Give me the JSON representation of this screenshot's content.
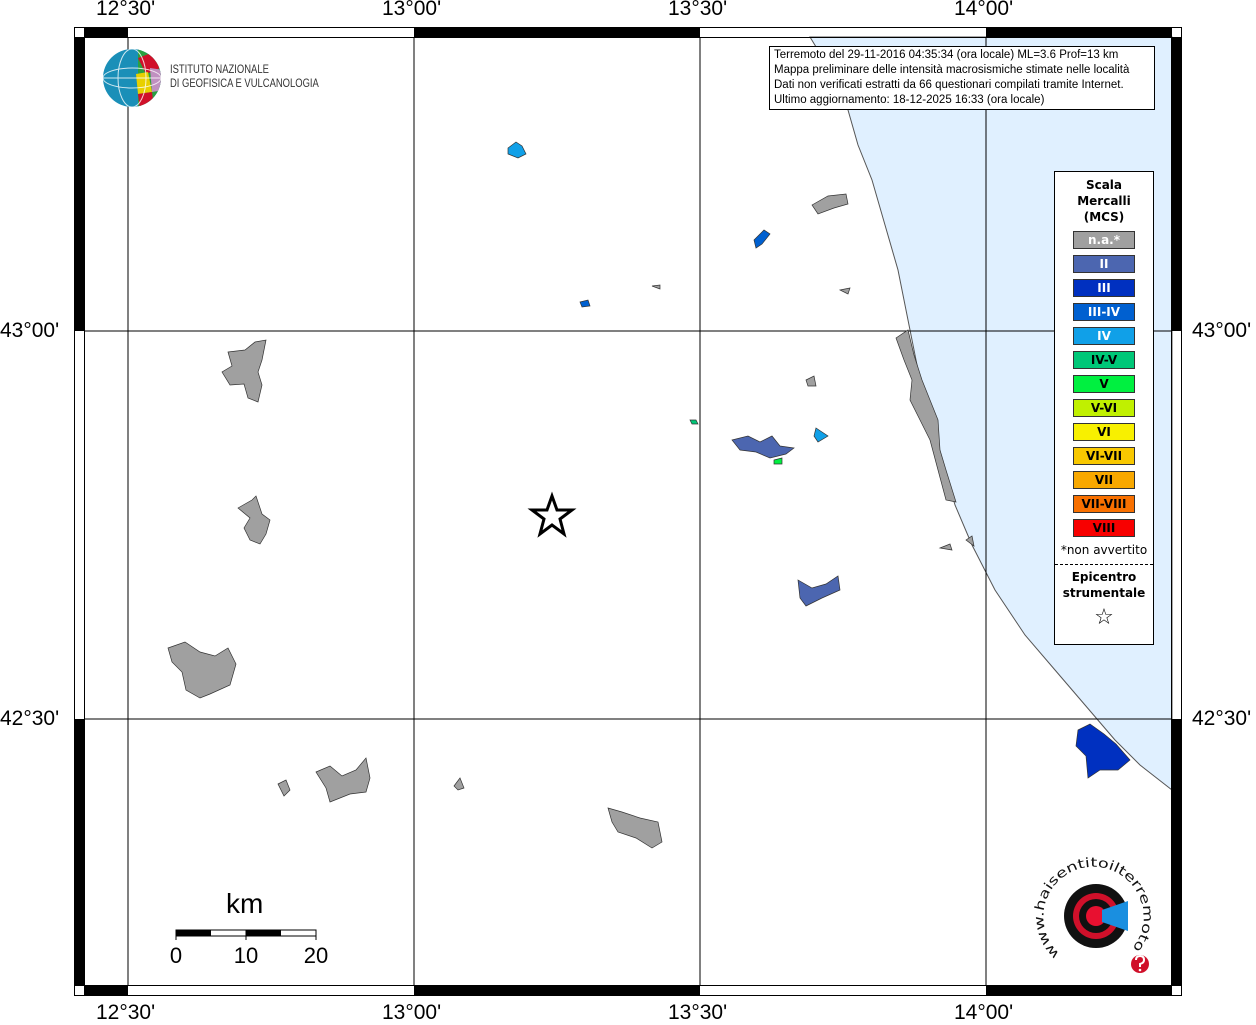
{
  "map": {
    "longitude_labels": [
      "12°30'",
      "13°00'",
      "13°30'",
      "14°00'"
    ],
    "latitude_labels": [
      "43°00'",
      "42°30'"
    ],
    "colors": {
      "sea": "#e0f0ff",
      "not_felt": "#a0a0a0"
    }
  },
  "info": {
    "lines": [
      "Terremoto del 29-11-2016 04:35:34 (ora locale) ML=3.6 Prof=13 km",
      "Mappa preliminare delle intensità macrosismiche stimate nelle località",
      "Dati non verificati estratti da 66 questionari compilati tramite Internet.",
      "Ultimo aggiornamento: 18-12-2025 16:33 (ora locale)"
    ]
  },
  "legend": {
    "title_lines": [
      "Scala",
      "Mercalli",
      "(MCS)"
    ],
    "items": [
      {
        "label": "n.a.*",
        "color": "#a0a0a0",
        "text_color": "#ffffff"
      },
      {
        "label": "II",
        "color": "#4c66b0",
        "text_color": "#ffffff"
      },
      {
        "label": "III",
        "color": "#0030c0",
        "text_color": "#ffffff"
      },
      {
        "label": "III-IV",
        "color": "#0060d0",
        "text_color": "#ffffff"
      },
      {
        "label": "IV",
        "color": "#10a0e8",
        "text_color": "#ffffff"
      },
      {
        "label": "IV-V",
        "color": "#00c878",
        "text_color": "#000000"
      },
      {
        "label": "V",
        "color": "#00f040",
        "text_color": "#000000"
      },
      {
        "label": "V-VI",
        "color": "#c0f000",
        "text_color": "#000000"
      },
      {
        "label": "VI",
        "color": "#f8f000",
        "text_color": "#000000"
      },
      {
        "label": "VI-VII",
        "color": "#f8c800",
        "text_color": "#000000"
      },
      {
        "label": "VII",
        "color": "#f8a800",
        "text_color": "#000000"
      },
      {
        "label": "VII-VIII",
        "color": "#f87000",
        "text_color": "#000000"
      },
      {
        "label": "VIII",
        "color": "#f80000",
        "text_color": "#000000"
      }
    ],
    "note": "*non avvertito",
    "epicenter_lines": [
      "Epicentro",
      "strumentale"
    ],
    "epicenter_symbol": "☆"
  },
  "scale_bar": {
    "unit": "km",
    "ticks": [
      "0",
      "10",
      "20"
    ]
  },
  "logos": {
    "ingv": [
      "ISTITUTO NAZIONALE",
      "DI GEOFISICA E VULCANOLOGIA"
    ],
    "hsit": "www.haisentitoilterremoto.it"
  }
}
